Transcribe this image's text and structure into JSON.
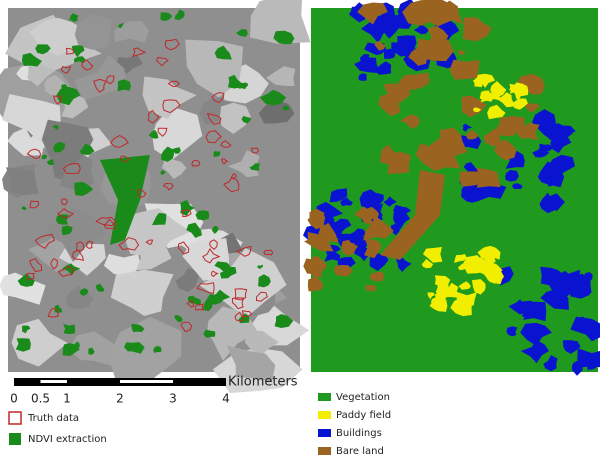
{
  "left_map": {
    "legend": [
      {
        "label": "Truth data",
        "color": "#c0282a"
      },
      {
        "label": "NDVI extraction",
        "color": "#1a8a1a"
      }
    ]
  },
  "right_map": {
    "legend": [
      {
        "label": "Vegetation",
        "color": "#1f9a1f"
      },
      {
        "label": "Paddy field",
        "color": "#f2ee00"
      },
      {
        "label": "Buildings",
        "color": "#0a14d0"
      },
      {
        "label": "Bare land",
        "color": "#9a6420"
      }
    ]
  },
  "scale_bar": {
    "unit": "Kilometers",
    "ticks": [
      0,
      0.5,
      1,
      2,
      3,
      4
    ]
  }
}
